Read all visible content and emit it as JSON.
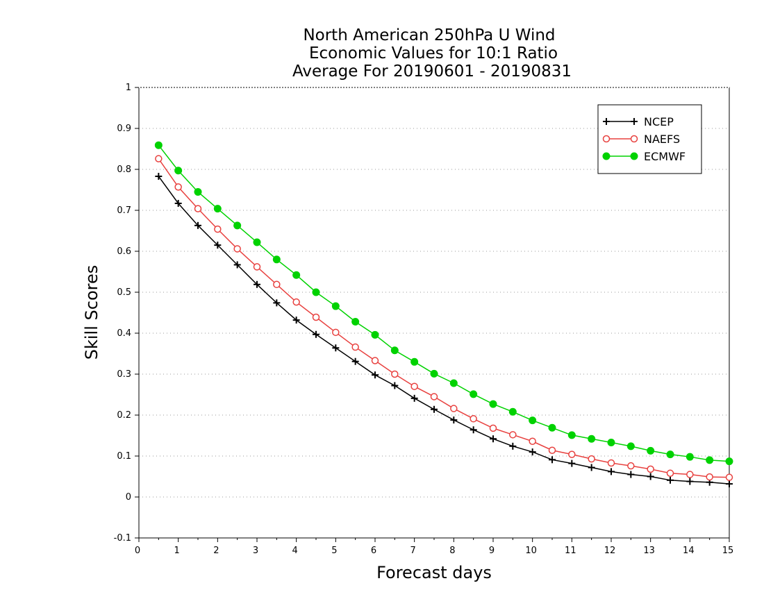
{
  "chart_data": {
    "type": "line",
    "title_lines": [
      "North American 250hPa U Wind",
      "Economic Values for 10:1 Ratio",
      "Average For 20190601 - 20190831"
    ],
    "xlabel": "Forecast days",
    "ylabel": "Skill Scores",
    "xlim": [
      0,
      15
    ],
    "ylim": [
      -0.1,
      1
    ],
    "x_ticks": [
      "0",
      "1",
      "2",
      "3",
      "4",
      "5",
      "6",
      "7",
      "8",
      "9",
      "10",
      "11",
      "12",
      "13",
      "14",
      "15"
    ],
    "y_ticks": [
      "-0.1",
      "0",
      "0.1",
      "0.2",
      "0.3",
      "0.4",
      "0.5",
      "0.6",
      "0.7",
      "0.8",
      "0.9",
      "1"
    ],
    "grid": "horizontal dotted",
    "legend_position": "top-right",
    "x": [
      0.5,
      1,
      1.5,
      2,
      2.5,
      3,
      3.5,
      4,
      4.5,
      5,
      5.5,
      6,
      6.5,
      7,
      7.5,
      8,
      8.5,
      9,
      9.5,
      10,
      10.5,
      11,
      11.5,
      12,
      12.5,
      13,
      13.5,
      14,
      14.5,
      15
    ],
    "series": [
      {
        "name": "NCEP",
        "color": "#000000",
        "marker": "plus",
        "values": [
          0.783,
          0.717,
          0.663,
          0.615,
          0.567,
          0.519,
          0.474,
          0.432,
          0.397,
          0.364,
          0.331,
          0.298,
          0.272,
          0.241,
          0.214,
          0.188,
          0.164,
          0.142,
          0.124,
          0.11,
          0.091,
          0.082,
          0.072,
          0.062,
          0.055,
          0.05,
          0.041,
          0.038,
          0.036,
          0.032
        ]
      },
      {
        "name": "NAEFS",
        "color": "#e8413f",
        "marker": "open-circle",
        "values": [
          0.826,
          0.757,
          0.704,
          0.654,
          0.606,
          0.562,
          0.519,
          0.476,
          0.439,
          0.402,
          0.366,
          0.333,
          0.3,
          0.27,
          0.245,
          0.216,
          0.191,
          0.168,
          0.152,
          0.136,
          0.114,
          0.104,
          0.093,
          0.083,
          0.076,
          0.068,
          0.058,
          0.055,
          0.049,
          0.048
        ]
      },
      {
        "name": "ECMWF",
        "color": "#00d200",
        "marker": "filled-circle",
        "values": [
          0.859,
          0.797,
          0.745,
          0.704,
          0.663,
          0.622,
          0.58,
          0.542,
          0.5,
          0.466,
          0.428,
          0.396,
          0.358,
          0.33,
          0.301,
          0.278,
          0.251,
          0.227,
          0.208,
          0.187,
          0.169,
          0.151,
          0.142,
          0.133,
          0.124,
          0.113,
          0.104,
          0.098,
          0.09,
          0.087
        ]
      }
    ]
  }
}
